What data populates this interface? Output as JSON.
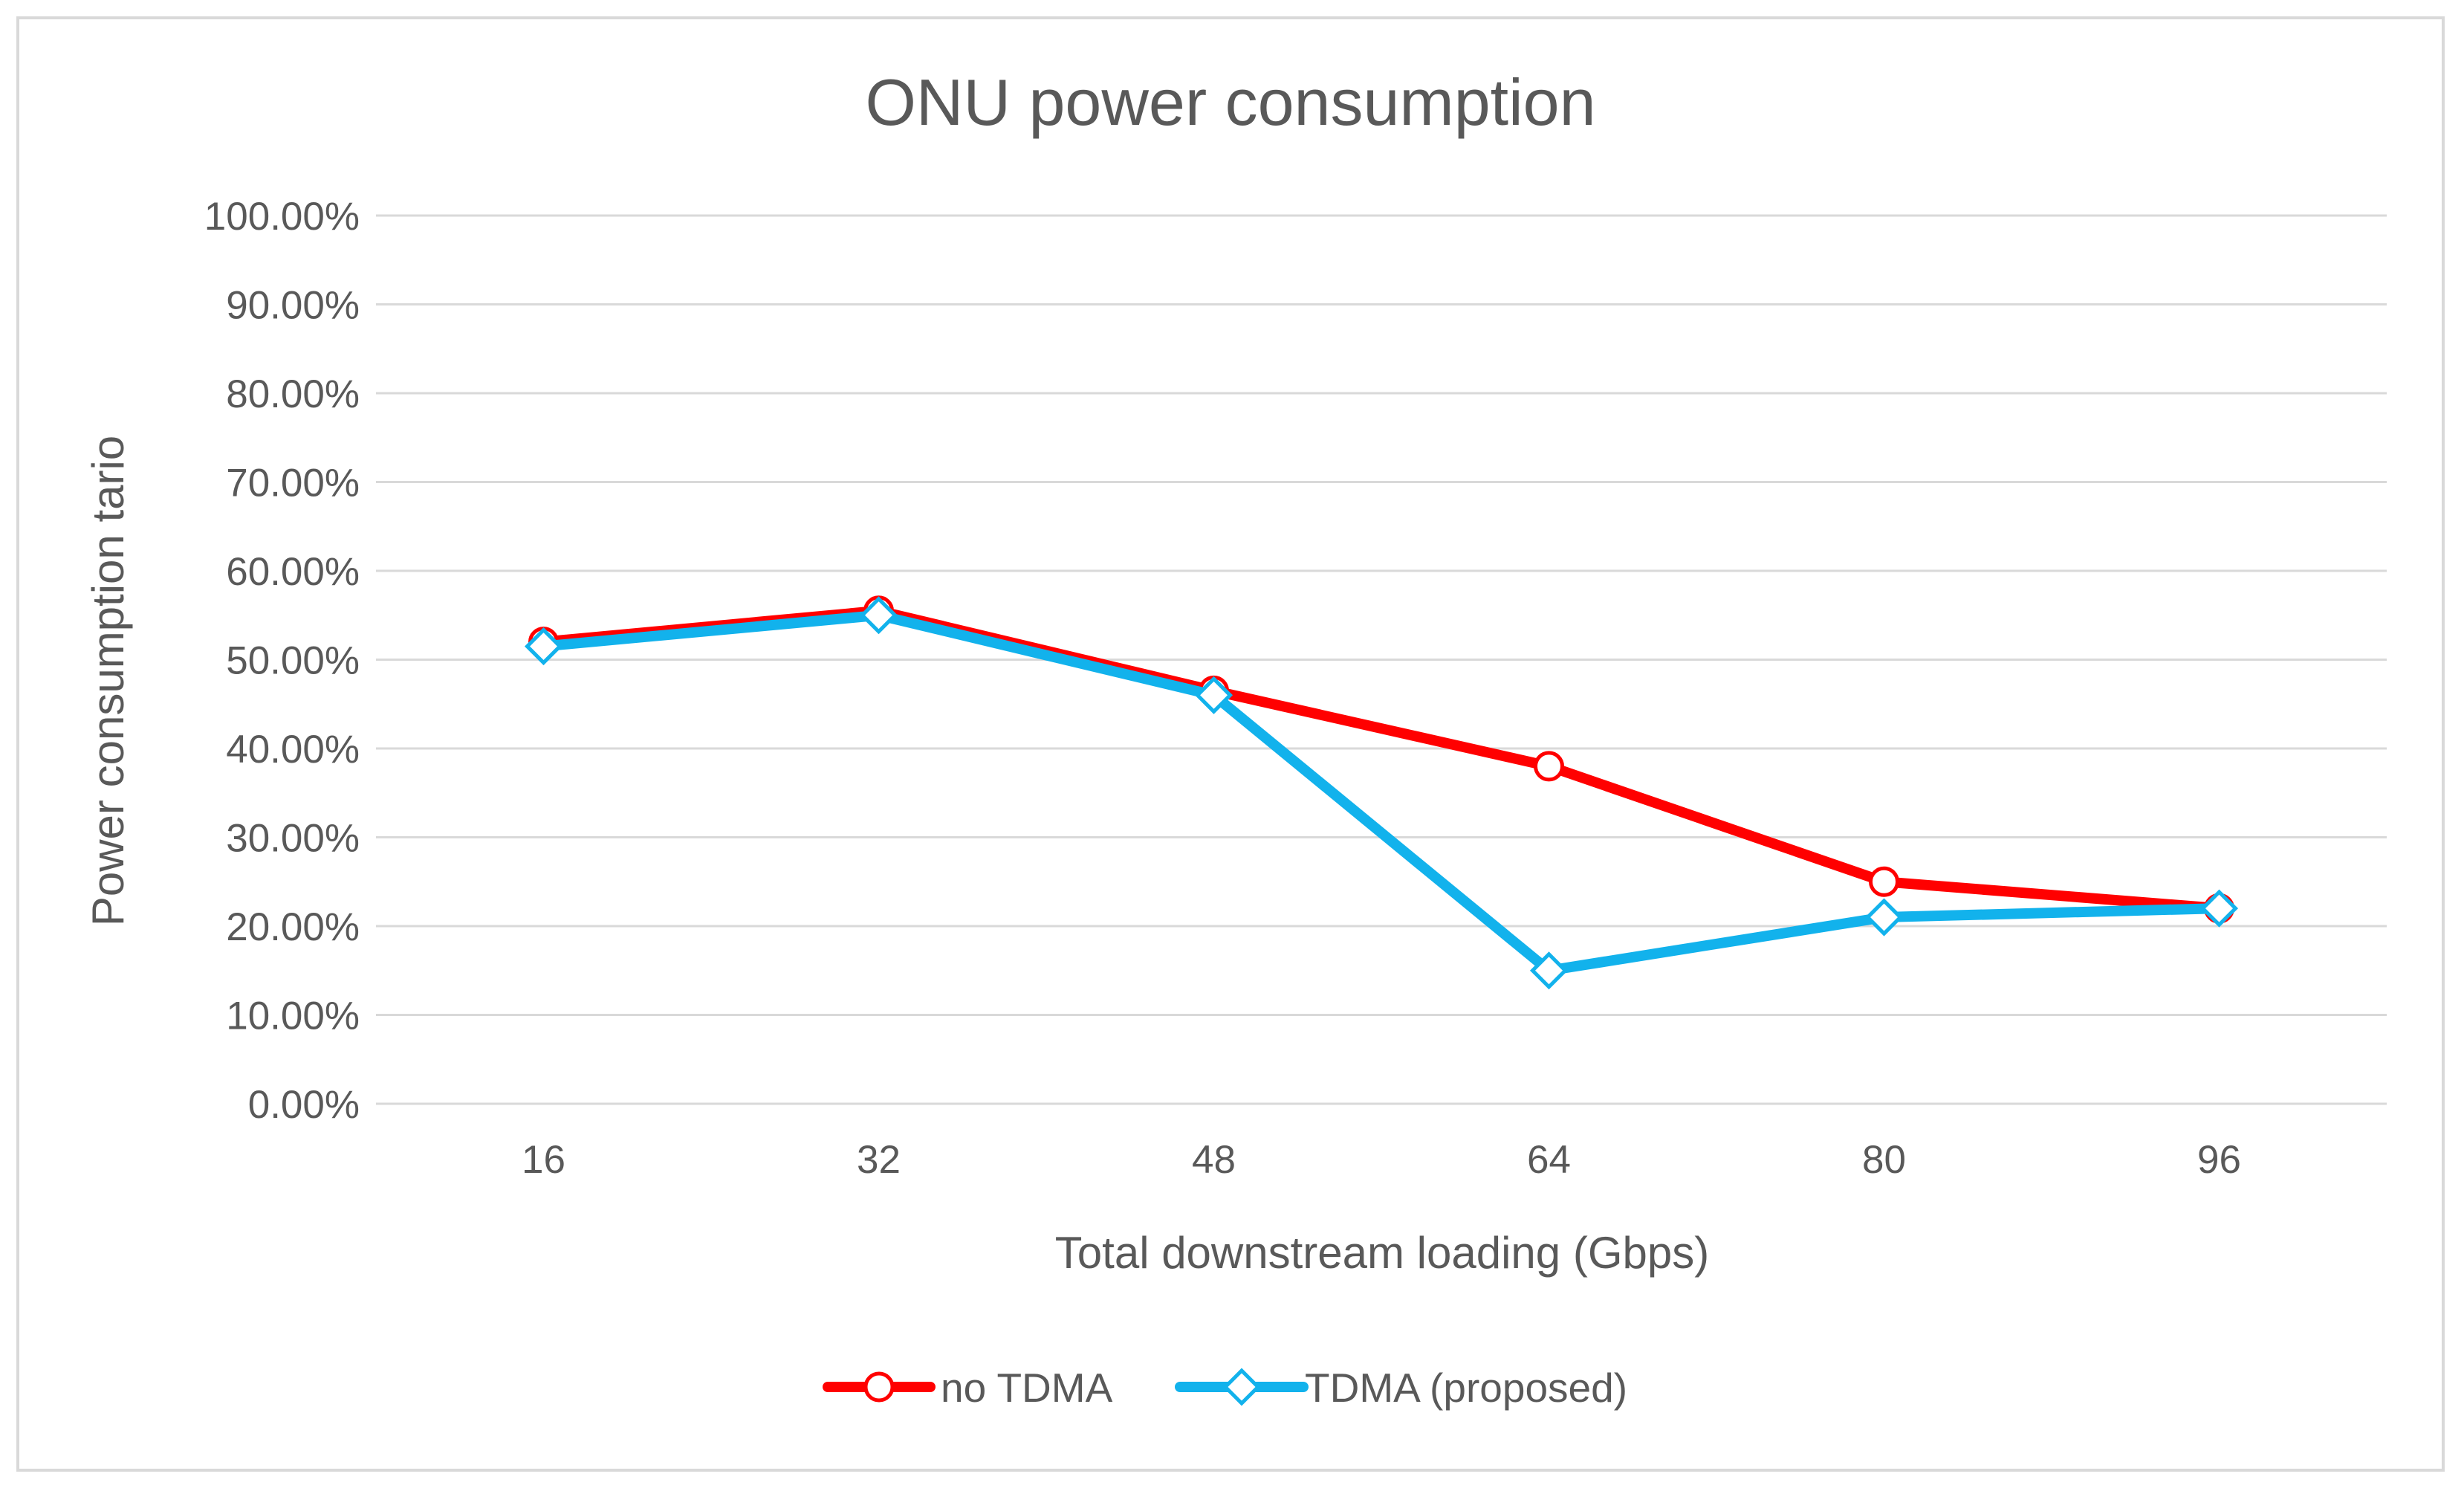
{
  "chart_data": {
    "type": "line",
    "title": "ONU power consumption",
    "xlabel": "Total downstream loading (Gbps)",
    "ylabel": "Power consumption tario",
    "categories": [
      "16",
      "32",
      "48",
      "64",
      "80",
      "96"
    ],
    "ylim": [
      0,
      1
    ],
    "yticks": [
      0,
      0.1,
      0.2,
      0.3,
      0.4,
      0.5,
      0.6,
      0.7,
      0.8,
      0.9,
      1.0
    ],
    "ytick_labels": [
      "0.00%",
      "10.00%",
      "20.00%",
      "30.00%",
      "40.00%",
      "50.00%",
      "60.00%",
      "70.00%",
      "80.00%",
      "90.00%",
      "100.00%"
    ],
    "grid": true,
    "legend_position": "bottom",
    "series": [
      {
        "name": "no TDMA",
        "color": "#ff0000",
        "marker": "circle",
        "values": [
          0.52,
          0.555,
          0.465,
          0.38,
          0.25,
          0.22
        ]
      },
      {
        "name": "TDMA (proposed)",
        "color": "#12b2ec",
        "marker": "diamond",
        "values": [
          0.515,
          0.55,
          0.46,
          0.15,
          0.21,
          0.22
        ]
      }
    ]
  }
}
